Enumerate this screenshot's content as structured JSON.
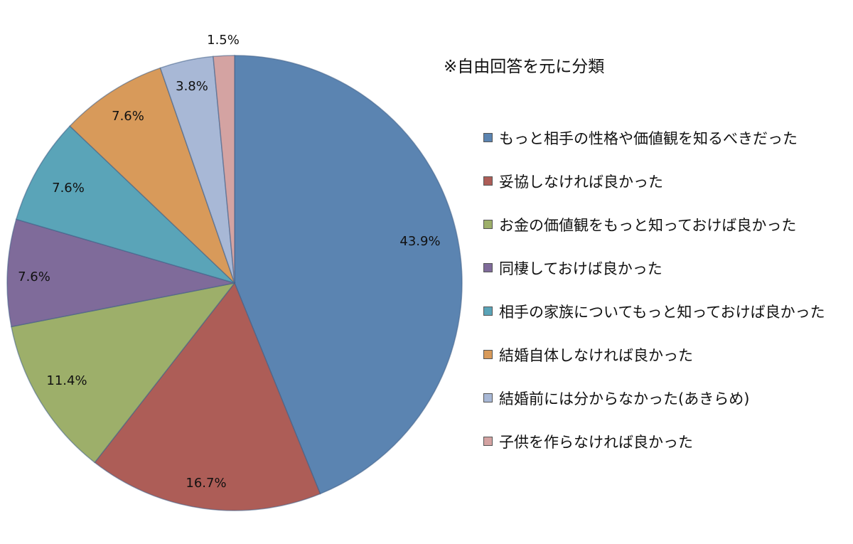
{
  "chart_data": {
    "type": "pie",
    "title": "",
    "note": "※自由回答を元に分類",
    "start_angle_deg": 0,
    "direction": "clockwise",
    "legend_position": "right",
    "slices": [
      {
        "label": "もっと相手の性格や価値観を知るべきだった",
        "value": 43.9,
        "display": "43.9%",
        "color": "#5b84b1"
      },
      {
        "label": "妥協しなければ良かった",
        "value": 16.7,
        "display": "16.7%",
        "color": "#ad5d57"
      },
      {
        "label": "お金の価値観をもっと知っておけば良かった",
        "value": 11.4,
        "display": "11.4%",
        "color": "#9daf6a"
      },
      {
        "label": "同棲しておけば良かった",
        "value": 7.6,
        "display": "7.6%",
        "color": "#7f6b9a"
      },
      {
        "label": "相手の家族についてもっと知っておけば良かった",
        "value": 7.6,
        "display": "7.6%",
        "color": "#5aa4b8"
      },
      {
        "label": "結婚自体しなければ良かった",
        "value": 7.6,
        "display": "7.6%",
        "color": "#d89a5a"
      },
      {
        "label": "結婚前には分からなかった(あきらめ)",
        "value": 3.8,
        "display": "3.8%",
        "color": "#a8b8d6"
      },
      {
        "label": "子供を作らなければ良かった",
        "value": 1.5,
        "display": "1.5%",
        "color": "#d4a3a2"
      }
    ]
  }
}
